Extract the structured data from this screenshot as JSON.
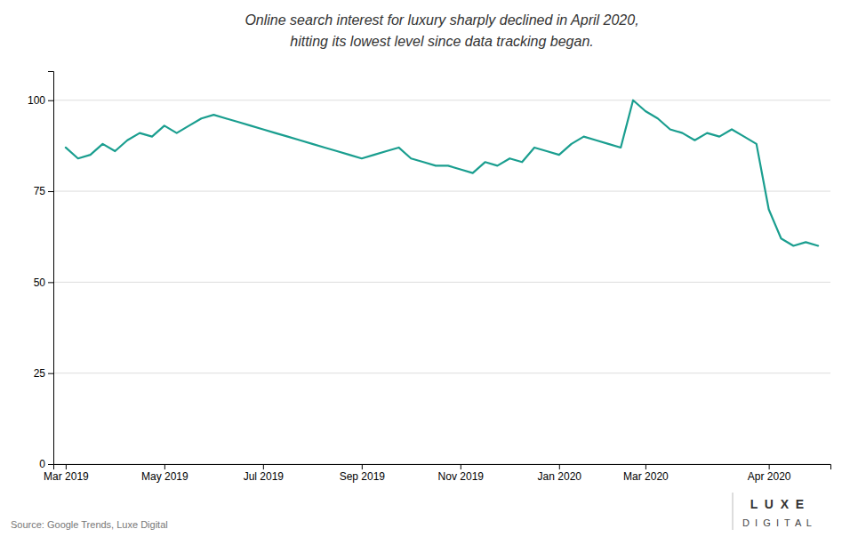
{
  "chart_data": {
    "type": "line",
    "title": "Online search interest for luxury sharply declined in April 2020,",
    "subtitle": "hitting its lowest level since data tracking began.",
    "annotations": [
      "Source: Google Trends, Luxe Digital",
      "L  U  X  E",
      "D  I  G  I  T  A  L"
    ],
    "color": "#1a9e8f",
    "x": [
      0,
      1,
      2,
      3,
      4,
      5,
      6,
      7,
      8,
      9,
      10,
      11,
      12,
      13,
      14,
      15,
      16,
      17,
      18,
      19,
      20,
      21,
      22,
      23,
      24,
      25,
      26,
      27,
      28,
      29,
      30,
      31,
      32,
      33,
      34,
      35,
      36,
      37,
      38,
      39,
      40,
      41,
      42,
      43,
      44,
      45,
      46,
      47,
      48,
      49,
      50,
      51,
      52,
      53,
      54,
      55,
      56,
      57,
      58,
      59,
      60,
      61
    ],
    "values": [
      87,
      84,
      85,
      88,
      86,
      89,
      91,
      90,
      93,
      91,
      93,
      95,
      96,
      95,
      94,
      93,
      92,
      91,
      90,
      89,
      88,
      87,
      86,
      85,
      84,
      85,
      86,
      87,
      84,
      83,
      82,
      82,
      81,
      80,
      83,
      82,
      84,
      83,
      87,
      86,
      85,
      88,
      90,
      89,
      88,
      87,
      100,
      97,
      95,
      92,
      91,
      89,
      91,
      90,
      92,
      90,
      88,
      70,
      62,
      60,
      61,
      60
    ],
    "xlim": [
      -1,
      62
    ],
    "xticks": [
      {
        "value": 0,
        "label": "Mar 2019"
      },
      {
        "value": 8,
        "label": "May 2019"
      },
      {
        "value": 16,
        "label": "Jul 2019"
      },
      {
        "value": 24,
        "label": "Sep 2019"
      },
      {
        "value": 32,
        "label": "Nov 2019"
      },
      {
        "value": 40,
        "label": "Jan 2020"
      },
      {
        "value": 47,
        "label": "Mar 2020"
      },
      {
        "value": 57,
        "label": "Apr 2020"
      }
    ],
    "ylim": [
      0,
      108
    ],
    "yticks": [
      0,
      25,
      50,
      75,
      100
    ],
    "grid": true
  }
}
